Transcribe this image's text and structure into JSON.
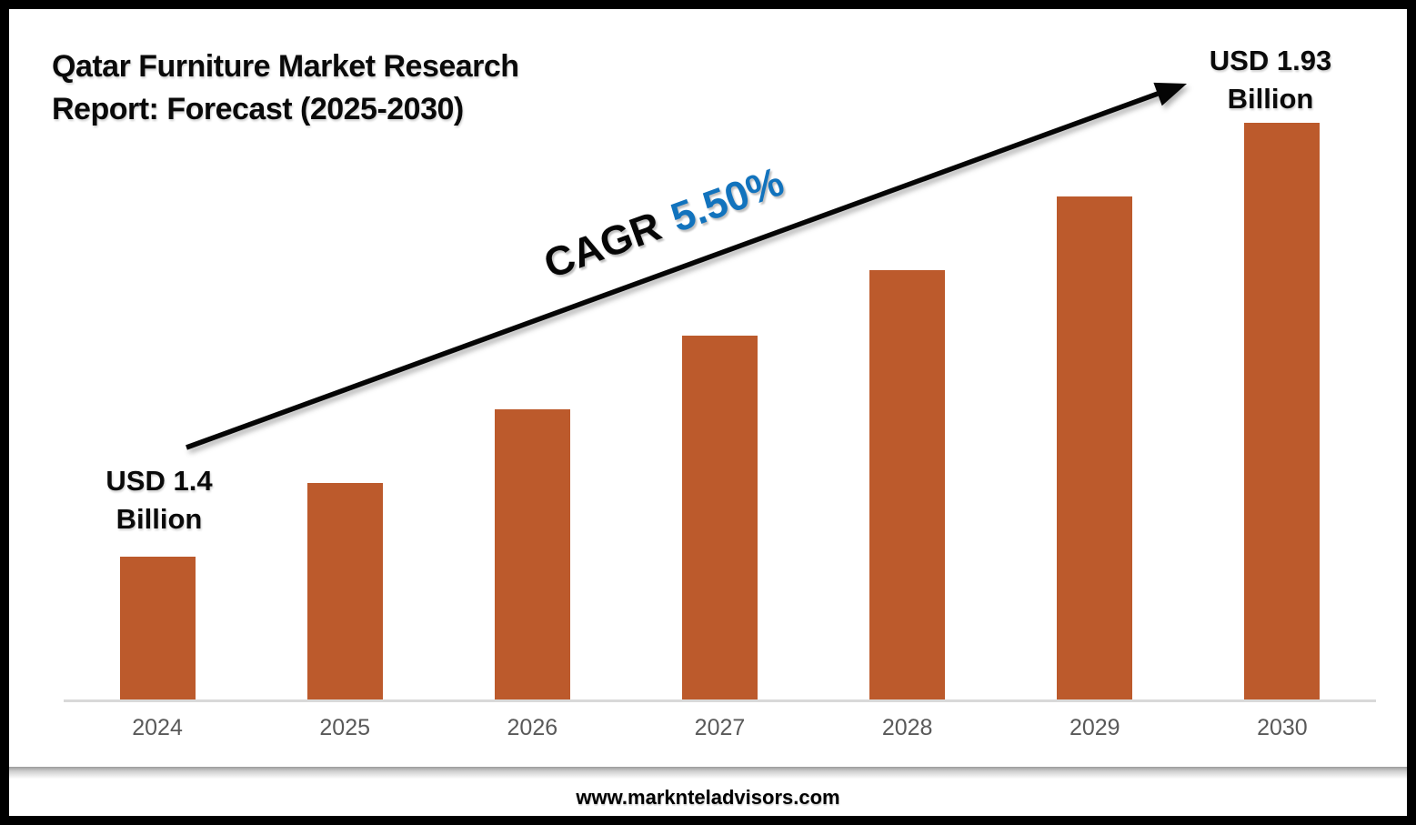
{
  "header": {
    "title_line1": "Qatar Furniture Market Research",
    "title_line2": "Report: Forecast (2025-2030)"
  },
  "chart_data": {
    "type": "bar",
    "title": "Qatar Furniture Market Research Report: Forecast (2025-2030)",
    "categories": [
      "2024",
      "2025",
      "2026",
      "2027",
      "2028",
      "2029",
      "2030"
    ],
    "values": [
      1.4,
      1.49,
      1.58,
      1.67,
      1.75,
      1.84,
      1.93
    ],
    "unit": "USD Billion",
    "xlabel": "",
    "ylabel": "",
    "ylim": [
      1.22,
      1.99
    ],
    "grid": false,
    "legend": false,
    "bar_color": "#bc5a2c",
    "axis_label_color": "#595959",
    "baseline_color": "#d9d9d9",
    "annotations": {
      "start_label": {
        "line1": "USD 1.4",
        "line2": "Billion"
      },
      "end_label": {
        "line1": "USD 1.93",
        "line2": "Billion"
      },
      "cagr_prefix": "CAGR",
      "cagr_value": "5.50%",
      "cagr_value_color": "#1273bd",
      "trend_arrow": "up-right",
      "trend_arrow_color": "#050505"
    }
  },
  "footer": {
    "website": "www.marknteladvisors.com"
  }
}
